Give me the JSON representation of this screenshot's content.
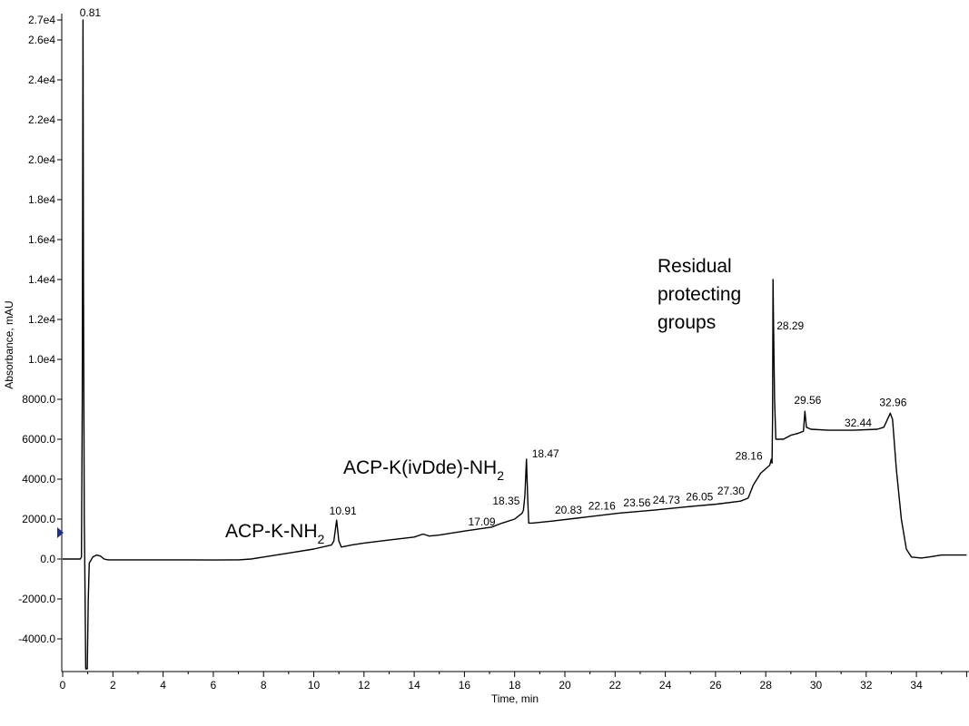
{
  "chart_data": {
    "type": "line",
    "title": "",
    "xlabel": "Time, min",
    "ylabel": "Absorbance, mAU",
    "xlim": [
      0,
      36
    ],
    "ylim": [
      -5500,
      27000
    ],
    "x_ticks": [
      0,
      2,
      4,
      6,
      8,
      10,
      12,
      14,
      16,
      18,
      20,
      22,
      24,
      26,
      28,
      30,
      32,
      34
    ],
    "x_tick_labels": [
      "0",
      "2",
      "4",
      "6",
      "8",
      "10",
      "12",
      "14",
      "16",
      "18",
      "20",
      "22",
      "24",
      "26",
      "28",
      "30",
      "32",
      "34"
    ],
    "y_ticks": [
      -4000,
      -2000,
      0,
      2000,
      4000,
      6000,
      8000,
      10000,
      12000,
      14000,
      16000,
      18000,
      20000,
      22000,
      24000,
      26000,
      27000
    ],
    "y_tick_labels": [
      "-4000.0",
      "-2000.0",
      "0.0",
      "2000.0",
      "4000.0",
      "6000.0",
      "8000.0",
      "1.0e4",
      "1.2e4",
      "1.4e4",
      "1.6e4",
      "1.8e4",
      "2.0e4",
      "2.2e4",
      "2.4e4",
      "2.6e4",
      "2.7e4"
    ],
    "grid": false,
    "series": [
      {
        "color": "#000000",
        "points": [
          [
            0.0,
            0
          ],
          [
            0.7,
            0
          ],
          [
            0.75,
            100
          ],
          [
            0.78,
            8000
          ],
          [
            0.8,
            20000
          ],
          [
            0.81,
            27000
          ],
          [
            0.83,
            14000
          ],
          [
            0.86,
            2000
          ],
          [
            0.88,
            0
          ],
          [
            0.92,
            -5500
          ],
          [
            0.98,
            -5500
          ],
          [
            1.02,
            -2000
          ],
          [
            1.06,
            -200
          ],
          [
            1.2,
            100
          ],
          [
            1.35,
            200
          ],
          [
            1.5,
            150
          ],
          [
            1.65,
            0
          ],
          [
            1.8,
            -40
          ],
          [
            3.0,
            -40
          ],
          [
            5.0,
            -40
          ],
          [
            6.0,
            -50
          ],
          [
            7.0,
            -40
          ],
          [
            7.5,
            0
          ],
          [
            8.0,
            100
          ],
          [
            9.0,
            300
          ],
          [
            10.0,
            500
          ],
          [
            10.7,
            700
          ],
          [
            10.8,
            900
          ],
          [
            10.91,
            1950
          ],
          [
            11.0,
            900
          ],
          [
            11.1,
            600
          ],
          [
            11.5,
            700
          ],
          [
            12.0,
            800
          ],
          [
            13.0,
            950
          ],
          [
            14.0,
            1100
          ],
          [
            14.35,
            1250
          ],
          [
            14.6,
            1150
          ],
          [
            15.0,
            1200
          ],
          [
            16.0,
            1400
          ],
          [
            17.09,
            1600
          ],
          [
            17.5,
            1800
          ],
          [
            18.0,
            2000
          ],
          [
            18.3,
            2300
          ],
          [
            18.35,
            2450
          ],
          [
            18.41,
            3200
          ],
          [
            18.47,
            5000
          ],
          [
            18.52,
            3000
          ],
          [
            18.56,
            1800
          ],
          [
            18.7,
            1800
          ],
          [
            19.5,
            1900
          ],
          [
            20.83,
            2100
          ],
          [
            22.16,
            2300
          ],
          [
            23.56,
            2450
          ],
          [
            24.73,
            2600
          ],
          [
            26.05,
            2750
          ],
          [
            27.0,
            2900
          ],
          [
            27.3,
            3050
          ],
          [
            27.5,
            3700
          ],
          [
            27.8,
            4300
          ],
          [
            28.16,
            4700
          ],
          [
            28.22,
            5000
          ],
          [
            28.25,
            4800
          ],
          [
            28.27,
            7000
          ],
          [
            28.29,
            14000
          ],
          [
            28.32,
            11000
          ],
          [
            28.35,
            8000
          ],
          [
            28.4,
            6000
          ],
          [
            28.7,
            6000
          ],
          [
            29.0,
            6200
          ],
          [
            29.3,
            6300
          ],
          [
            29.5,
            6400
          ],
          [
            29.56,
            7400
          ],
          [
            29.62,
            6600
          ],
          [
            29.8,
            6500
          ],
          [
            30.5,
            6450
          ],
          [
            31.5,
            6450
          ],
          [
            32.44,
            6500
          ],
          [
            32.7,
            6600
          ],
          [
            32.96,
            7300
          ],
          [
            33.05,
            7000
          ],
          [
            33.2,
            4500
          ],
          [
            33.4,
            2000
          ],
          [
            33.6,
            500
          ],
          [
            33.8,
            100
          ],
          [
            34.2,
            50
          ],
          [
            34.5,
            100
          ],
          [
            35.0,
            200
          ],
          [
            36.0,
            200
          ]
        ]
      }
    ],
    "peak_labels": [
      {
        "text": "0.81",
        "x": 0.81,
        "y": 27000
      },
      {
        "text": "10.91",
        "x": 10.91,
        "y": 1950
      },
      {
        "text": "17.09",
        "x": 17.09,
        "y": 1600
      },
      {
        "text": "18.35",
        "x": 18.35,
        "y": 2450
      },
      {
        "text": "18.47",
        "x": 18.47,
        "y": 5000
      },
      {
        "text": "20.83",
        "x": 20.83,
        "y": 2100
      },
      {
        "text": "22.16",
        "x": 22.16,
        "y": 2300
      },
      {
        "text": "23.56",
        "x": 23.56,
        "y": 2450
      },
      {
        "text": "24.73",
        "x": 24.73,
        "y": 2600
      },
      {
        "text": "26.05",
        "x": 26.05,
        "y": 2750
      },
      {
        "text": "27.30",
        "x": 27.3,
        "y": 3050
      },
      {
        "text": "28.16",
        "x": 28.16,
        "y": 4700
      },
      {
        "text": "28.29",
        "x": 28.29,
        "y": 11500
      },
      {
        "text": "29.56",
        "x": 29.56,
        "y": 7400
      },
      {
        "text": "32.44",
        "x": 32.44,
        "y": 6500
      },
      {
        "text": "32.96",
        "x": 32.96,
        "y": 7300
      }
    ],
    "annotations": [
      {
        "lines": [
          "ACP-K-NH",
          "2"
        ],
        "x": 10.91
      },
      {
        "lines": [
          "ACP-K(ivDde)-NH",
          "2"
        ],
        "x": 18.47
      },
      {
        "lines": [
          "Residual",
          "protecting",
          "groups"
        ],
        "x": 28.29
      }
    ]
  },
  "colors": {
    "trace": "#000000",
    "axis": "#000000",
    "marker": "#1f2f8f"
  }
}
